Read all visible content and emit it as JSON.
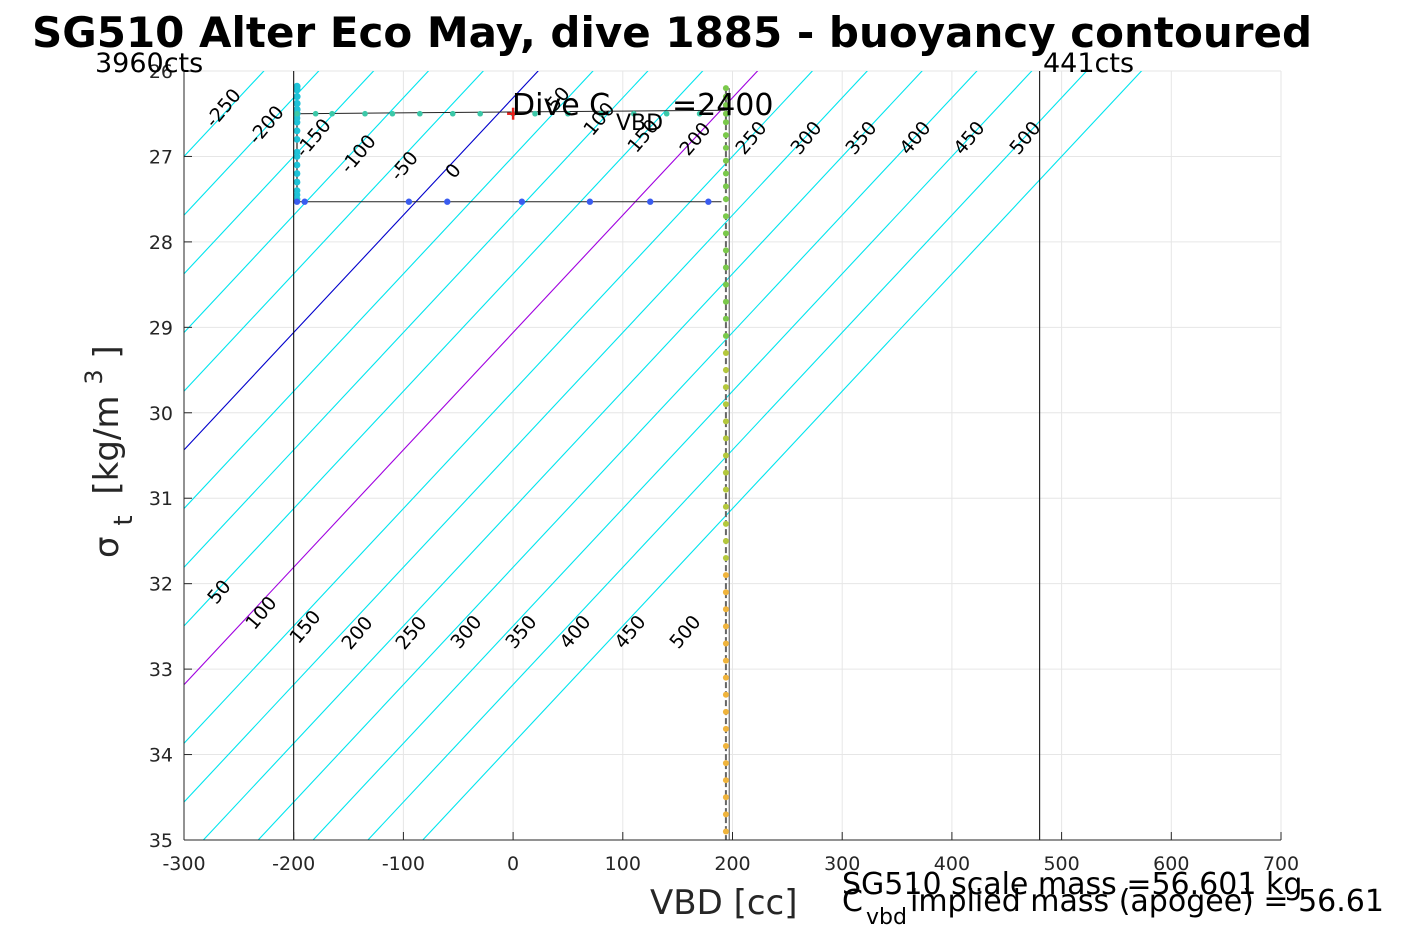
{
  "chart_data": {
    "type": "scatter",
    "title": "SG510 Alter Eco May, dive 1885 - buoyancy contoured",
    "xlabel": "VBD [cc]",
    "ylabel_main": "σ",
    "ylabel_sub": "t",
    "ylabel_unit_pre": "[kg/m",
    "ylabel_unit_sup": "3",
    "ylabel_unit_post": "]",
    "xlim": [
      -300,
      700
    ],
    "ylim": [
      26,
      35
    ],
    "y_reversed": true,
    "grid": true,
    "x_ticks": [
      -300,
      -200,
      -100,
      0,
      100,
      200,
      300,
      400,
      500,
      600,
      700
    ],
    "y_ticks": [
      26,
      27,
      28,
      29,
      30,
      31,
      32,
      33,
      34,
      35
    ],
    "annotations": {
      "left_counts": "3960cts",
      "right_counts": "441cts",
      "left_counts_x": -200,
      "right_counts_x": 480,
      "dive_c_vbd_pre": "Dive C",
      "dive_c_vbd_sub": "VBD",
      "dive_c_vbd_post": "=2400",
      "dive_marker_x": 0,
      "dive_marker_y": 26.5,
      "scale_mass": "SG510 scale mass =56.601 kg",
      "implied_mass_pre": "C",
      "implied_mass_sub": "vbd",
      "implied_mass_post": " implied mass (apogee) = 56.61"
    },
    "contour_lines": [
      {
        "level": -250,
        "label": "-250",
        "y0": 27.0,
        "x0": -300,
        "color": "#00e5ee"
      },
      {
        "level": -200,
        "label": "-200",
        "y0": 27.0,
        "x0": -250,
        "color": "#00e5ee"
      },
      {
        "level": -150,
        "label": "-150",
        "y0": 27.0,
        "x0": -200,
        "color": "#00e5ee"
      },
      {
        "level": -100,
        "label": "-100",
        "y0": 27.0,
        "x0": -150,
        "color": "#00e5ee"
      },
      {
        "level": -50,
        "label": "-50",
        "y0": 27.0,
        "x0": -100,
        "color": "#00e5ee"
      },
      {
        "level": 0,
        "label": "0",
        "y0": 27.0,
        "x0": -50,
        "color": "#0000cc"
      },
      {
        "level": 50,
        "label": "50",
        "y0": 27.0,
        "x0": 0,
        "color": "#00e5ee"
      },
      {
        "level": 100,
        "label": "100",
        "y0": 27.0,
        "x0": 50,
        "color": "#00e5ee"
      },
      {
        "level": 150,
        "label": "150",
        "y0": 27.0,
        "x0": 100,
        "color": "#00e5ee"
      },
      {
        "level": 200,
        "label": "200",
        "y0": 27.0,
        "x0": 150,
        "color": "#a000e0"
      },
      {
        "level": 250,
        "label": "250",
        "y0": 27.0,
        "x0": 200,
        "color": "#00e5ee"
      },
      {
        "level": 300,
        "label": "300",
        "y0": 27.0,
        "x0": 250,
        "color": "#00e5ee"
      },
      {
        "level": 350,
        "label": "350",
        "y0": 27.0,
        "x0": 300,
        "color": "#00e5ee"
      },
      {
        "level": 400,
        "label": "400",
        "y0": 27.0,
        "x0": 350,
        "color": "#00e5ee"
      },
      {
        "level": 450,
        "label": "450",
        "y0": 27.0,
        "x0": 400,
        "color": "#00e5ee"
      },
      {
        "level": 500,
        "label": "500",
        "y0": 27.0,
        "x0": 450,
        "color": "#00e5ee"
      },
      {
        "level": 550,
        "label": "",
        "y0": 27.0,
        "x0": 500,
        "color": "#00e5ee"
      }
    ],
    "lower_labels": [
      "50",
      "100",
      "150",
      "200",
      "250",
      "300",
      "350",
      "400",
      "450",
      "500"
    ],
    "upper_label_levels": [
      -250,
      -200,
      -150,
      -100,
      -50,
      0,
      50,
      100,
      150,
      200,
      250,
      300,
      350,
      400,
      450,
      500
    ],
    "ctd_path": {
      "descent_top": [
        [
          -197,
          26.18
        ],
        [
          -197,
          26.22
        ],
        [
          -197,
          26.3
        ],
        [
          -197,
          26.38
        ],
        [
          -197,
          26.45
        ],
        [
          -197,
          26.5
        ]
      ],
      "near_surface_row_y": 26.5,
      "near_surface_row_x": [
        -197,
        -180,
        -165,
        -135,
        -110,
        -85,
        -55,
        -30,
        0,
        20,
        50,
        80,
        110,
        140,
        170,
        195
      ],
      "cyan_column_x": -197,
      "cyan_column_y": [
        26.55,
        26.6,
        26.7,
        26.8,
        26.95,
        27.0,
        27.1,
        27.2,
        27.3,
        27.4,
        27.45,
        27.5
      ],
      "deep_row_y": 27.53,
      "deep_row_x": [
        -197,
        -190,
        -95,
        -60,
        8,
        70,
        125,
        178
      ],
      "vertical_x": 194,
      "vertical_y_top": 26.2,
      "vertical_y_bottom": 35.0,
      "vertical_points_green_y": [
        26.2,
        26.3,
        26.4,
        26.5,
        26.6,
        26.75,
        26.9,
        27.05,
        27.2,
        27.35,
        27.5,
        27.7,
        27.9,
        28.1,
        28.3,
        28.5,
        28.7,
        28.9,
        29.1
      ],
      "vertical_points_olive_y": [
        29.3,
        29.5,
        29.7,
        29.9,
        30.1,
        30.3,
        30.5,
        30.7,
        30.9,
        31.1,
        31.3,
        31.5,
        31.7
      ],
      "vertical_points_orange_y": [
        31.9,
        32.1,
        32.3,
        32.5,
        32.7,
        32.9,
        33.1,
        33.3,
        33.5,
        33.7,
        33.9,
        34.1,
        34.3,
        34.5,
        34.7,
        34.9
      ]
    },
    "colors": {
      "cyan": "#00e5ee",
      "blue_zero": "#0000cc",
      "purple": "#a000e0",
      "grid": "#e6e6e6",
      "dot_cyan": "#1ec3d8",
      "dot_blue": "#3a5cf0",
      "dot_teal": "#3cc8a8",
      "dot_green": "#7ac94a",
      "dot_olive": "#b4c83c",
      "dot_orange": "#f0b43c",
      "marker_red": "#e6201c"
    }
  }
}
